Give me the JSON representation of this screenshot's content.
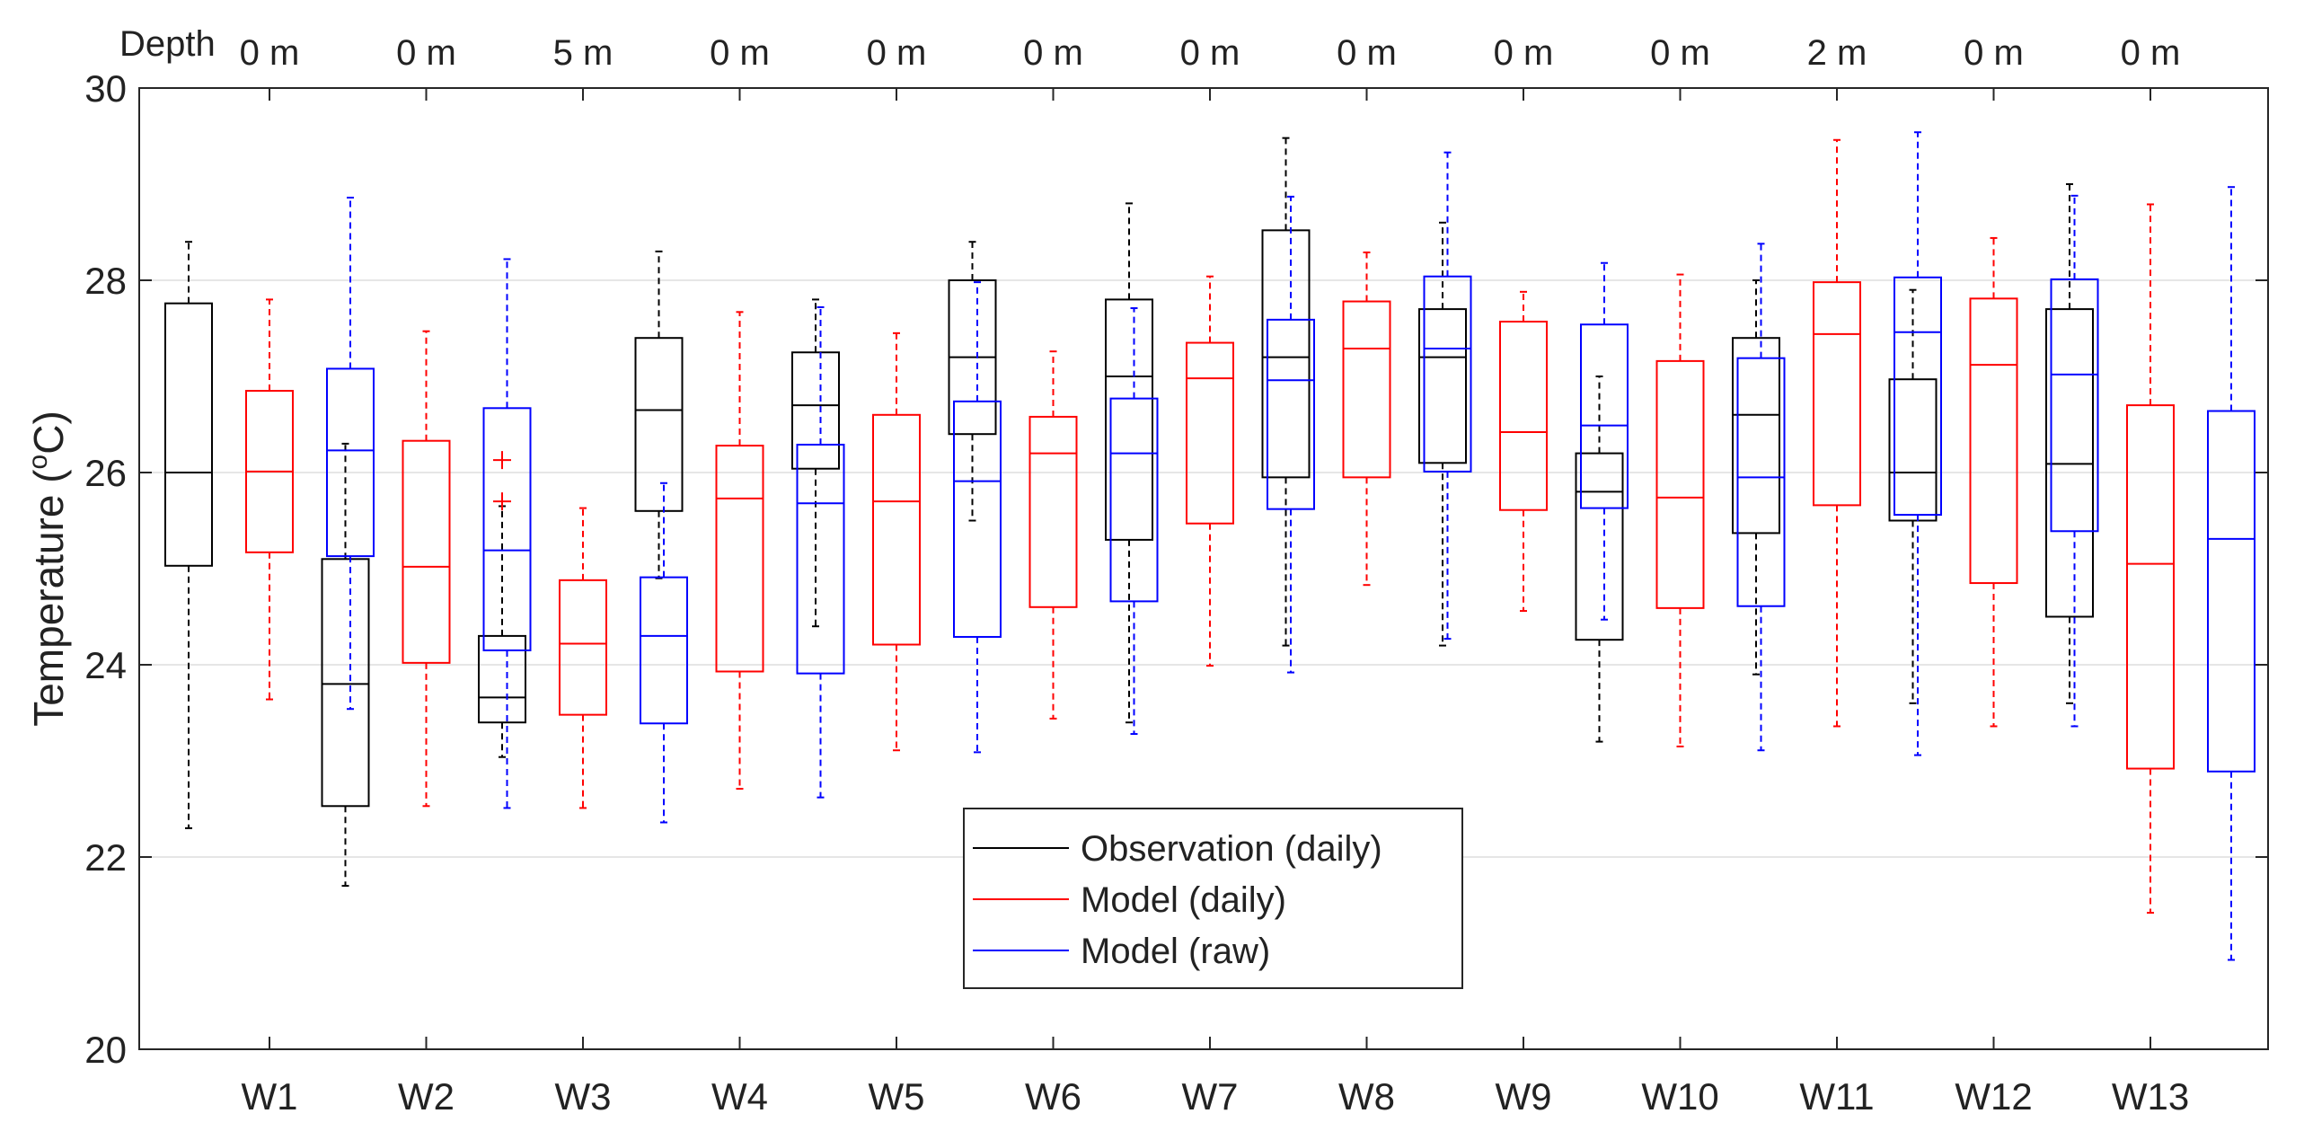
{
  "chart_data": {
    "type": "boxplot",
    "title": "",
    "ylabel": "Temperature (",
    "ylabel_sup": "o",
    "ylabel_tail": "C)",
    "ylim": [
      20,
      30
    ],
    "yticks": [
      20,
      22,
      24,
      26,
      28,
      30
    ],
    "grid": "horizontal",
    "depth_title": "Depth",
    "categories": [
      "W1",
      "W2",
      "W3",
      "W4",
      "W5",
      "W6",
      "W7",
      "W8",
      "W9",
      "W10",
      "W11",
      "W12",
      "W13"
    ],
    "depths": [
      "0 m",
      "0 m",
      "5 m",
      "0 m",
      "0 m",
      "0 m",
      "0 m",
      "0 m",
      "0 m",
      "0 m",
      "2 m",
      "0 m",
      "0 m"
    ],
    "legend_position": "bottom-center",
    "series": [
      {
        "name": "Observation (daily)",
        "color": "#000000",
        "boxes": [
          {
            "low": 22.3,
            "q1": 25.03,
            "median": 26.0,
            "q3": 27.76,
            "high": 28.4
          },
          {
            "low": 21.7,
            "q1": 22.53,
            "median": 23.8,
            "q3": 25.1,
            "high": 26.3
          },
          {
            "low": 23.04,
            "q1": 23.4,
            "median": 23.66,
            "q3": 24.3,
            "high": 25.65,
            "outliers": [
              25.7,
              26.13
            ]
          },
          {
            "low": 24.9,
            "q1": 25.6,
            "median": 26.65,
            "q3": 27.4,
            "high": 28.3
          },
          {
            "low": 24.4,
            "q1": 26.04,
            "median": 26.7,
            "q3": 27.25,
            "high": 27.8
          },
          {
            "low": 25.5,
            "q1": 26.4,
            "median": 27.2,
            "q3": 28.0,
            "high": 28.4
          },
          {
            "low": 23.4,
            "q1": 25.3,
            "median": 27.0,
            "q3": 27.8,
            "high": 28.8
          },
          {
            "low": 24.2,
            "q1": 25.95,
            "median": 27.2,
            "q3": 28.52,
            "high": 29.48
          },
          {
            "low": 24.2,
            "q1": 26.1,
            "median": 27.2,
            "q3": 27.7,
            "high": 28.6
          },
          {
            "low": 23.2,
            "q1": 24.26,
            "median": 25.8,
            "q3": 26.2,
            "high": 27.0
          },
          {
            "low": 23.9,
            "q1": 25.37,
            "median": 26.6,
            "q3": 27.4,
            "high": 28.0
          },
          {
            "low": 23.6,
            "q1": 25.5,
            "median": 26.0,
            "q3": 26.97,
            "high": 27.9
          },
          {
            "low": 23.6,
            "q1": 24.5,
            "median": 26.09,
            "q3": 27.7,
            "high": 29.0
          }
        ]
      },
      {
        "name": "Model (daily)",
        "color": "#ff0000",
        "boxes": [
          {
            "low": 23.64,
            "q1": 25.17,
            "median": 26.01,
            "q3": 26.85,
            "high": 27.8
          },
          {
            "low": 22.53,
            "q1": 24.02,
            "median": 25.02,
            "q3": 26.33,
            "high": 27.47
          },
          {
            "low": 22.51,
            "q1": 23.48,
            "median": 24.22,
            "q3": 24.88,
            "high": 25.63
          },
          {
            "low": 22.71,
            "q1": 23.93,
            "median": 25.73,
            "q3": 26.28,
            "high": 27.67
          },
          {
            "low": 23.11,
            "q1": 24.21,
            "median": 25.7,
            "q3": 26.6,
            "high": 27.45
          },
          {
            "low": 23.44,
            "q1": 24.6,
            "median": 26.2,
            "q3": 26.58,
            "high": 27.26
          },
          {
            "low": 23.99,
            "q1": 25.47,
            "median": 26.98,
            "q3": 27.35,
            "high": 28.04
          },
          {
            "low": 24.83,
            "q1": 25.95,
            "median": 27.29,
            "q3": 27.78,
            "high": 28.29
          },
          {
            "low": 24.56,
            "q1": 25.61,
            "median": 26.42,
            "q3": 27.57,
            "high": 27.88
          },
          {
            "low": 23.15,
            "q1": 24.59,
            "median": 25.74,
            "q3": 27.16,
            "high": 28.06
          },
          {
            "low": 23.36,
            "q1": 25.66,
            "median": 27.44,
            "q3": 27.98,
            "high": 29.46
          },
          {
            "low": 23.36,
            "q1": 24.85,
            "median": 27.12,
            "q3": 27.81,
            "high": 28.44
          },
          {
            "low": 21.42,
            "q1": 22.92,
            "median": 25.05,
            "q3": 26.7,
            "high": 28.79
          }
        ]
      },
      {
        "name": "Model (raw)",
        "color": "#0000ff",
        "boxes": [
          {
            "low": 23.54,
            "q1": 25.13,
            "median": 26.23,
            "q3": 27.08,
            "high": 28.86
          },
          {
            "low": 22.51,
            "q1": 24.15,
            "median": 25.19,
            "q3": 26.67,
            "high": 28.22
          },
          {
            "low": 22.36,
            "q1": 23.39,
            "median": 24.3,
            "q3": 24.91,
            "high": 25.89
          },
          {
            "low": 22.62,
            "q1": 23.91,
            "median": 25.68,
            "q3": 26.29,
            "high": 27.72
          },
          {
            "low": 23.09,
            "q1": 24.29,
            "median": 25.91,
            "q3": 26.74,
            "high": 27.98
          },
          {
            "low": 23.28,
            "q1": 24.66,
            "median": 26.2,
            "q3": 26.77,
            "high": 27.71
          },
          {
            "low": 23.92,
            "q1": 25.62,
            "median": 26.96,
            "q3": 27.59,
            "high": 28.87
          },
          {
            "low": 24.27,
            "q1": 26.01,
            "median": 27.29,
            "q3": 28.04,
            "high": 29.33
          },
          {
            "low": 24.47,
            "q1": 25.63,
            "median": 26.49,
            "q3": 27.54,
            "high": 28.18
          },
          {
            "low": 23.11,
            "q1": 24.61,
            "median": 25.95,
            "q3": 27.19,
            "high": 28.38
          },
          {
            "low": 23.06,
            "q1": 25.56,
            "median": 27.46,
            "q3": 28.03,
            "high": 29.54
          },
          {
            "low": 23.36,
            "q1": 25.39,
            "median": 27.02,
            "q3": 28.01,
            "high": 28.88
          },
          {
            "low": 20.93,
            "q1": 22.89,
            "median": 25.31,
            "q3": 26.64,
            "high": 28.97
          }
        ]
      }
    ]
  }
}
